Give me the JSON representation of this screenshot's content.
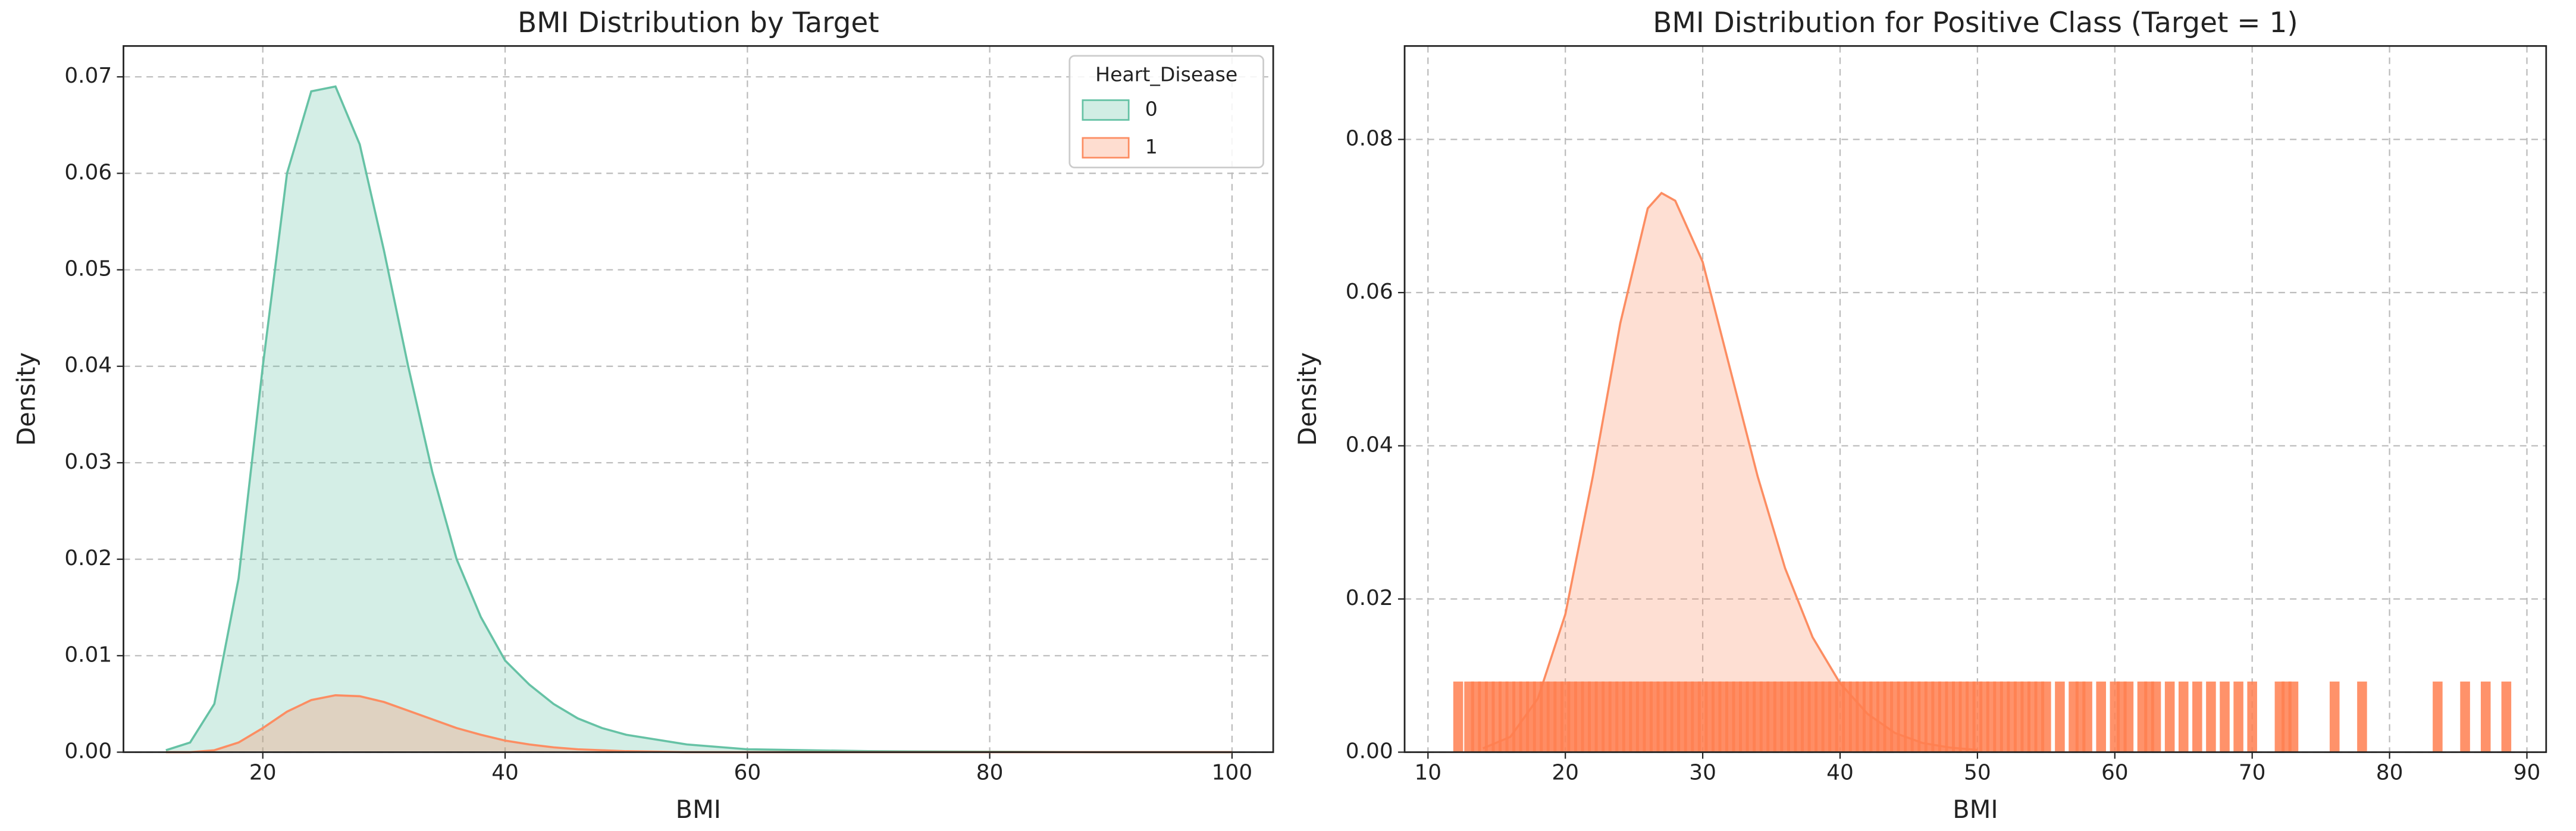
{
  "chart_data": [
    {
      "type": "kde",
      "title": "BMI Distribution by Target",
      "xlabel": "BMI",
      "ylabel": "Density",
      "x": [
        12,
        14,
        16,
        18,
        20,
        22,
        24,
        26,
        28,
        30,
        32,
        34,
        36,
        38,
        40,
        42,
        44,
        46,
        48,
        50,
        55,
        60,
        70,
        80,
        90,
        100
      ],
      "series": [
        {
          "name": "0",
          "color": "#66c2a5",
          "values": [
            0.0002,
            0.001,
            0.005,
            0.018,
            0.04,
            0.06,
            0.0685,
            0.069,
            0.063,
            0.052,
            0.04,
            0.029,
            0.02,
            0.014,
            0.0095,
            0.007,
            0.005,
            0.0035,
            0.0025,
            0.0018,
            0.0008,
            0.0003,
            0.0001,
            5e-05,
            0,
            0
          ]
        },
        {
          "name": "1",
          "color": "#fc8d62",
          "values": [
            0,
            0,
            0.0002,
            0.001,
            0.0025,
            0.0042,
            0.0054,
            0.0059,
            0.0058,
            0.0052,
            0.0043,
            0.0034,
            0.0025,
            0.0018,
            0.0012,
            0.0008,
            0.0005,
            0.0003,
            0.0002,
            0.0001,
            0,
            0,
            0,
            0,
            0,
            0
          ]
        }
      ],
      "legend": {
        "title": "Heart_Disease",
        "loc": "upper right"
      },
      "xlim": [
        8.5,
        103.4
      ],
      "ylim": [
        0,
        0.0732
      ],
      "xticks": [
        20,
        40,
        60,
        80,
        100
      ],
      "yticks": [
        {
          "value": 0,
          "label": "0.00"
        },
        {
          "value": 0.01,
          "label": "0.01"
        },
        {
          "value": 0.02,
          "label": "0.02"
        },
        {
          "value": 0.03,
          "label": "0.03"
        },
        {
          "value": 0.04,
          "label": "0.04"
        },
        {
          "value": 0.05,
          "label": "0.05"
        },
        {
          "value": 0.06,
          "label": "0.06"
        },
        {
          "value": 0.07,
          "label": "0.07"
        }
      ],
      "grid": true
    },
    {
      "type": "kde_rug",
      "title": "BMI Distribution for Positive Class (Target = 1)",
      "xlabel": "BMI",
      "ylabel": "Density",
      "x": [
        14,
        16,
        18,
        20,
        22,
        24,
        26,
        27,
        28,
        30,
        32,
        34,
        36,
        38,
        40,
        42,
        44,
        46,
        48,
        50
      ],
      "values": [
        0.0005,
        0.002,
        0.007,
        0.018,
        0.036,
        0.056,
        0.071,
        0.073,
        0.072,
        0.064,
        0.05,
        0.036,
        0.024,
        0.015,
        0.009,
        0.005,
        0.0025,
        0.0012,
        0.0006,
        0.0003
      ],
      "color": "#fc8d62",
      "rug": [
        12.2,
        13,
        13.5,
        14,
        14.5,
        15,
        15.5,
        16,
        16.5,
        17,
        17.5,
        18,
        18.5,
        19,
        19.5,
        20,
        20.5,
        21,
        21.5,
        22,
        22.5,
        23,
        23.5,
        24,
        24.5,
        25,
        25.5,
        26,
        26.5,
        27,
        27.5,
        28,
        28.5,
        29,
        29.5,
        30,
        30.5,
        31,
        31.5,
        32,
        32.5,
        33,
        33.5,
        34,
        34.5,
        35,
        35.5,
        36,
        36.5,
        37,
        37.5,
        38,
        38.5,
        39,
        39.5,
        40,
        40.5,
        41,
        41.5,
        42,
        42.5,
        43,
        43.5,
        44,
        44.5,
        45,
        45.5,
        46,
        46.5,
        47,
        47.5,
        48,
        48.5,
        49,
        49.5,
        50,
        50.5,
        51,
        51.5,
        52,
        52.5,
        53,
        53.5,
        54,
        54.5,
        55,
        56,
        57,
        57.5,
        58,
        59,
        60,
        60.5,
        61,
        62,
        62.5,
        63,
        64,
        65,
        66,
        67,
        68,
        69,
        70,
        72,
        72.5,
        73,
        76,
        78,
        83.5,
        85.5,
        87,
        88.5
      ],
      "rug_color": "#ff7f50",
      "xlim": [
        8.3,
        91.4
      ],
      "ylim": [
        0,
        0.0922
      ],
      "xticks": [
        10,
        20,
        30,
        40,
        50,
        60,
        70,
        80,
        90
      ],
      "yticks": [
        {
          "value": 0,
          "label": "0.00"
        },
        {
          "value": 0.02,
          "label": "0.02"
        },
        {
          "value": 0.04,
          "label": "0.04"
        },
        {
          "value": 0.06,
          "label": "0.06"
        },
        {
          "value": 0.08,
          "label": "0.08"
        }
      ],
      "grid": true
    }
  ]
}
